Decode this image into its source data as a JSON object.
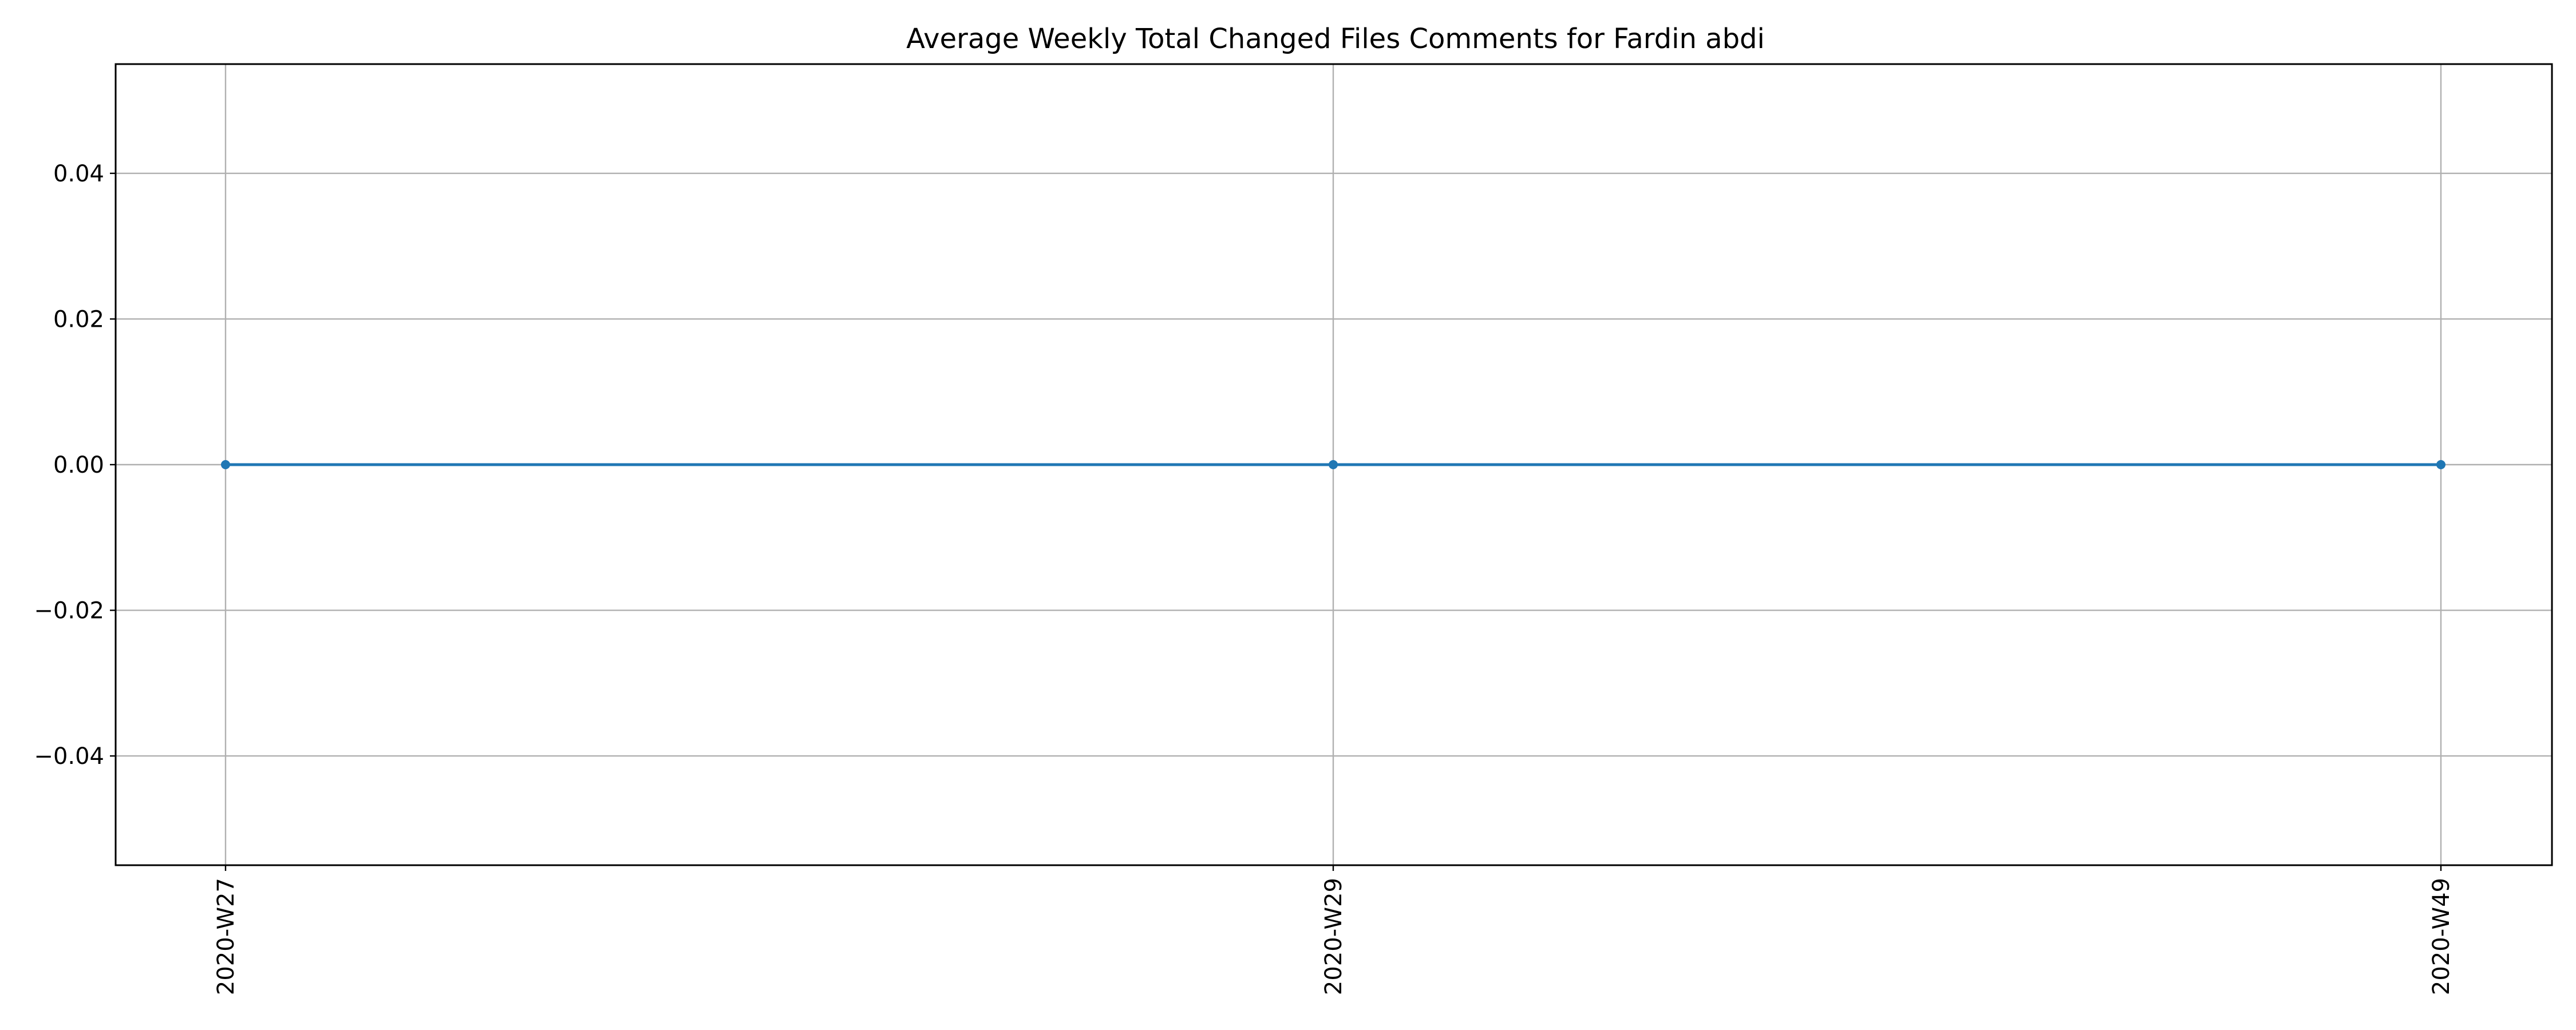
{
  "chart_data": {
    "type": "line",
    "title": "Average Weekly Total Changed Files Comments for Fardin abdi",
    "xlabel": "",
    "ylabel": "",
    "categories": [
      "2020-W27",
      "2020-W29",
      "2020-W49"
    ],
    "series": [
      {
        "values": [
          0,
          0,
          0
        ],
        "color": "#1f77b4",
        "marker": "circle"
      }
    ],
    "ylim": [
      -0.055,
      0.055
    ],
    "yticks": [
      -0.04,
      -0.02,
      0.0,
      0.02,
      0.04
    ],
    "ytick_labels": [
      "−0.04",
      "−0.02",
      "0.00",
      "0.02",
      "0.04"
    ],
    "grid": true,
    "legend": "none"
  }
}
